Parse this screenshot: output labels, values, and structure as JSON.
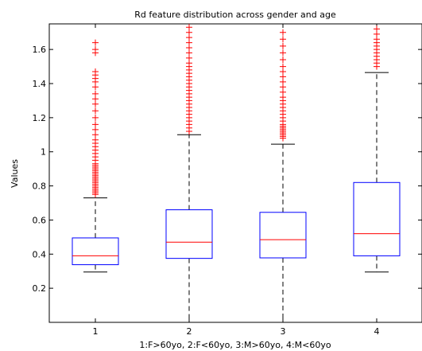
{
  "chart_data": {
    "type": "boxplot",
    "title": "Rd feature distribution across gender and age",
    "xlabel": "1:F>60yo, 2:F<60yo, 3:M>60yo, 4:M<60yo",
    "ylabel": "Values",
    "categories": [
      "1",
      "2",
      "3",
      "4"
    ],
    "ylim": [
      0,
      1.75
    ],
    "yticks": [
      0.2,
      0.4,
      0.6,
      0.8,
      1,
      1.2,
      1.4,
      1.6
    ],
    "ytick_labels": [
      "0.2",
      "0.4",
      "0.6",
      "0.8",
      "1",
      "1.2",
      "1.4",
      "1.6"
    ],
    "boxes": [
      {
        "category": "1",
        "whisker_low": 0.295,
        "q1": 0.338,
        "median": 0.39,
        "q3": 0.495,
        "whisker_high": 0.73,
        "outliers": [
          0.75,
          0.76,
          0.77,
          0.78,
          0.79,
          0.8,
          0.81,
          0.82,
          0.83,
          0.84,
          0.85,
          0.86,
          0.87,
          0.88,
          0.89,
          0.9,
          0.91,
          0.92,
          0.93,
          0.95,
          0.97,
          0.99,
          1.01,
          1.03,
          1.05,
          1.07,
          1.1,
          1.13,
          1.16,
          1.2,
          1.24,
          1.28,
          1.31,
          1.34,
          1.38,
          1.41,
          1.43,
          1.45,
          1.47,
          1.58,
          1.6,
          1.64
        ]
      },
      {
        "category": "2",
        "whisker_low": 0.0,
        "q1": 0.375,
        "median": 0.47,
        "q3": 0.66,
        "whisker_high": 1.1,
        "outliers": [
          1.12,
          1.14,
          1.16,
          1.18,
          1.2,
          1.22,
          1.24,
          1.26,
          1.28,
          1.3,
          1.32,
          1.34,
          1.36,
          1.38,
          1.4,
          1.42,
          1.44,
          1.46,
          1.48,
          1.5,
          1.52,
          1.55,
          1.58,
          1.61,
          1.64,
          1.67,
          1.7,
          1.73
        ]
      },
      {
        "category": "3",
        "whisker_low": 0.0,
        "q1": 0.378,
        "median": 0.485,
        "q3": 0.645,
        "whisker_high": 1.045,
        "outliers": [
          1.08,
          1.09,
          1.1,
          1.11,
          1.12,
          1.13,
          1.14,
          1.15,
          1.16,
          1.18,
          1.2,
          1.22,
          1.24,
          1.26,
          1.28,
          1.3,
          1.32,
          1.35,
          1.38,
          1.41,
          1.44,
          1.47,
          1.5,
          1.54,
          1.58,
          1.62,
          1.66,
          1.7
        ]
      },
      {
        "category": "4",
        "whisker_low": 0.295,
        "q1": 0.39,
        "median": 0.52,
        "q3": 0.82,
        "whisker_high": 1.465,
        "outliers": [
          1.5,
          1.52,
          1.54,
          1.56,
          1.58,
          1.6,
          1.62,
          1.64,
          1.66,
          1.69,
          1.72
        ]
      }
    ],
    "colors": {
      "box": "#0000ff",
      "median": "#ff0000",
      "whisker": "#000000",
      "outlier": "#ff0000",
      "axes": "#000000"
    },
    "grid": false,
    "legend": "none"
  }
}
